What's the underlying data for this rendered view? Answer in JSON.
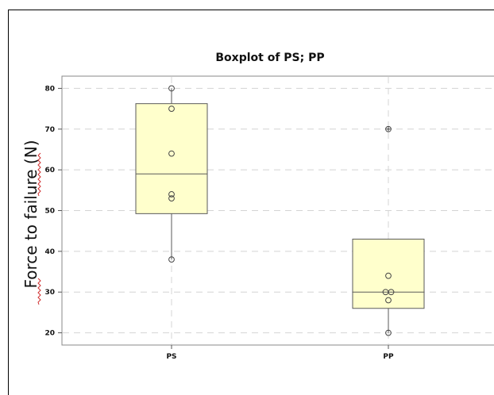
{
  "colors": {
    "box_fill": "#ffffcc",
    "box_stroke": "#5a5a5a",
    "grid": "#d4d4d4",
    "axis": "#888888"
  },
  "chart_data": {
    "type": "box",
    "title": "Boxplot of PS; PP",
    "xlabel": "",
    "ylabel": "Force to failure (N)",
    "categories": [
      "PS",
      "PP"
    ],
    "ylim": [
      17,
      83
    ],
    "yticks": [
      20,
      30,
      40,
      50,
      60,
      70,
      80
    ],
    "grid": true,
    "boxes": [
      {
        "name": "PS",
        "q1": 49.25,
        "median": 59,
        "q3": 76.25,
        "whisker_low": 38,
        "whisker_high": 80,
        "outliers": [],
        "points": [
          80,
          75,
          64,
          54,
          53,
          38
        ]
      },
      {
        "name": "PP",
        "q1": 26,
        "median": 30,
        "q3": 43,
        "whisker_low": 20,
        "whisker_high": 43,
        "outliers": [
          70
        ],
        "points": [
          70,
          34,
          30,
          30,
          28,
          20
        ]
      }
    ]
  }
}
